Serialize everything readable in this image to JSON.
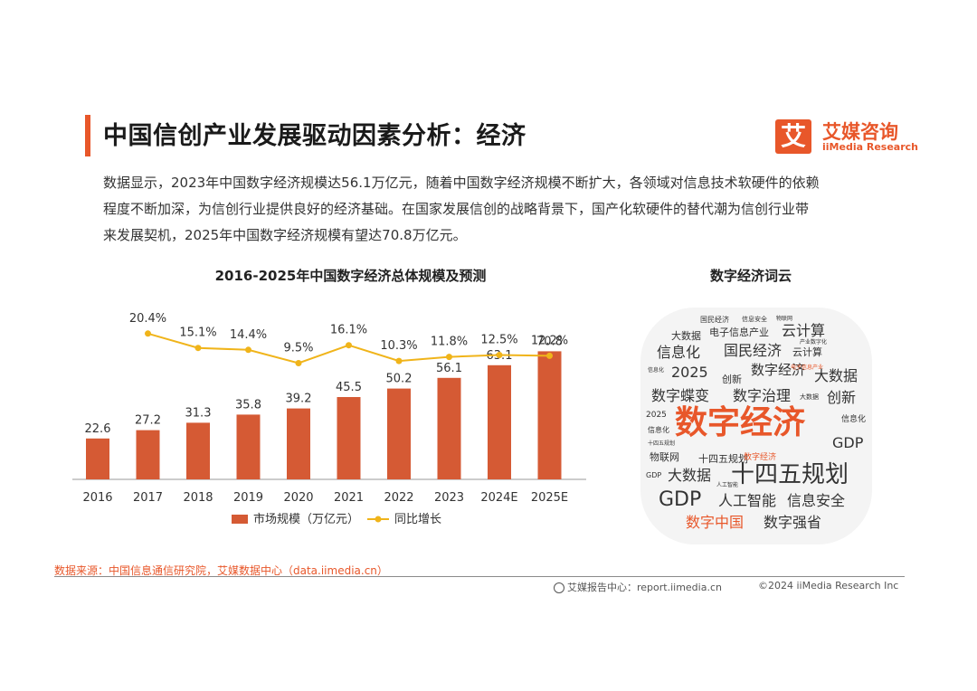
{
  "header": {
    "title": "中国信创产业发展驱动因素分析：经济",
    "logo_mark": "艾",
    "logo_cn": "艾媒咨询",
    "logo_en": "iiMedia Research"
  },
  "description": [
    "数据显示，2023年中国数字经济规模达56.1万亿元，随着中国数字经济规模不断扩大，各领域对信息技术软硬件的依赖",
    "程度不断加深，为信创行业提供良好的经济基础。在国家发展信创的战略背景下，国产化软硬件的替代潮为信创行业带",
    "来发展契机，2025年中国数字经济规模有望达70.8万亿元。"
  ],
  "chart_data": {
    "type": "bar",
    "title": "2016-2025年中国数字经济总体规模及预测",
    "categories": [
      "2016",
      "2017",
      "2018",
      "2019",
      "2020",
      "2021",
      "2022",
      "2023",
      "2024E",
      "2025E"
    ],
    "series": [
      {
        "name": "市场规模（万亿元）",
        "type": "bar",
        "color": "#d55a34",
        "values": [
          22.6,
          27.2,
          31.3,
          35.8,
          39.2,
          45.5,
          50.2,
          56.1,
          63.1,
          70.8
        ],
        "labels": [
          "22.6",
          "27.2",
          "31.3",
          "35.8",
          "39.2",
          "45.5",
          "50.2",
          "56.1",
          "63.1",
          "70.8"
        ]
      },
      {
        "name": "同比增长",
        "type": "line",
        "color": "#f0b41a",
        "values": [
          null,
          20.4,
          15.1,
          14.4,
          9.5,
          16.1,
          10.3,
          11.8,
          12.5,
          12.2
        ],
        "labels": [
          "",
          "20.4%",
          "15.1%",
          "14.4%",
          "9.5%",
          "16.1%",
          "10.3%",
          "11.8%",
          "12.5%",
          "12.2%"
        ]
      }
    ],
    "ylim_bar": [
      0,
      100
    ],
    "ylim_line": [
      -40,
      30
    ],
    "legend": "bottom-center",
    "grid": false
  },
  "word_cloud": {
    "title": "数字经济词云",
    "words": [
      {
        "text": "国民经济"
      },
      {
        "text": "信息安全"
      },
      {
        "text": "物联网"
      },
      {
        "text": "大数据"
      },
      {
        "text": "电子信息产业"
      },
      {
        "text": "云计算"
      },
      {
        "text": "产业数字化"
      },
      {
        "text": "信息化"
      },
      {
        "text": "国民经济"
      },
      {
        "text": "云计算"
      },
      {
        "text": "信息化"
      },
      {
        "text": "2025"
      },
      {
        "text": "数字经济"
      },
      {
        "text": "电子信息产业"
      },
      {
        "text": "创新"
      },
      {
        "text": "大数据"
      },
      {
        "text": "数字蝶变"
      },
      {
        "text": "数字治理"
      },
      {
        "text": "大数据"
      },
      {
        "text": "创新"
      },
      {
        "text": "2025"
      },
      {
        "text": "数字经济"
      },
      {
        "text": "信息化"
      },
      {
        "text": "信息化"
      },
      {
        "text": "GDP"
      },
      {
        "text": "十四五规划"
      },
      {
        "text": "物联网"
      },
      {
        "text": "十四五规划"
      },
      {
        "text": "数字经济"
      },
      {
        "text": "GDP"
      },
      {
        "text": "大数据"
      },
      {
        "text": "十四五规划"
      },
      {
        "text": "人工智能"
      },
      {
        "text": "GDP"
      },
      {
        "text": "人工智能"
      },
      {
        "text": "信息安全"
      },
      {
        "text": "数字中国"
      },
      {
        "text": "数字强省"
      }
    ]
  },
  "footer": {
    "source": "数据来源：中国信息通信研究院，艾媒数据中心（data.iimedia.cn）",
    "report_center": "艾媒报告中心：report.iimedia.cn",
    "copyright": "©2024  iiMedia Research  Inc"
  }
}
